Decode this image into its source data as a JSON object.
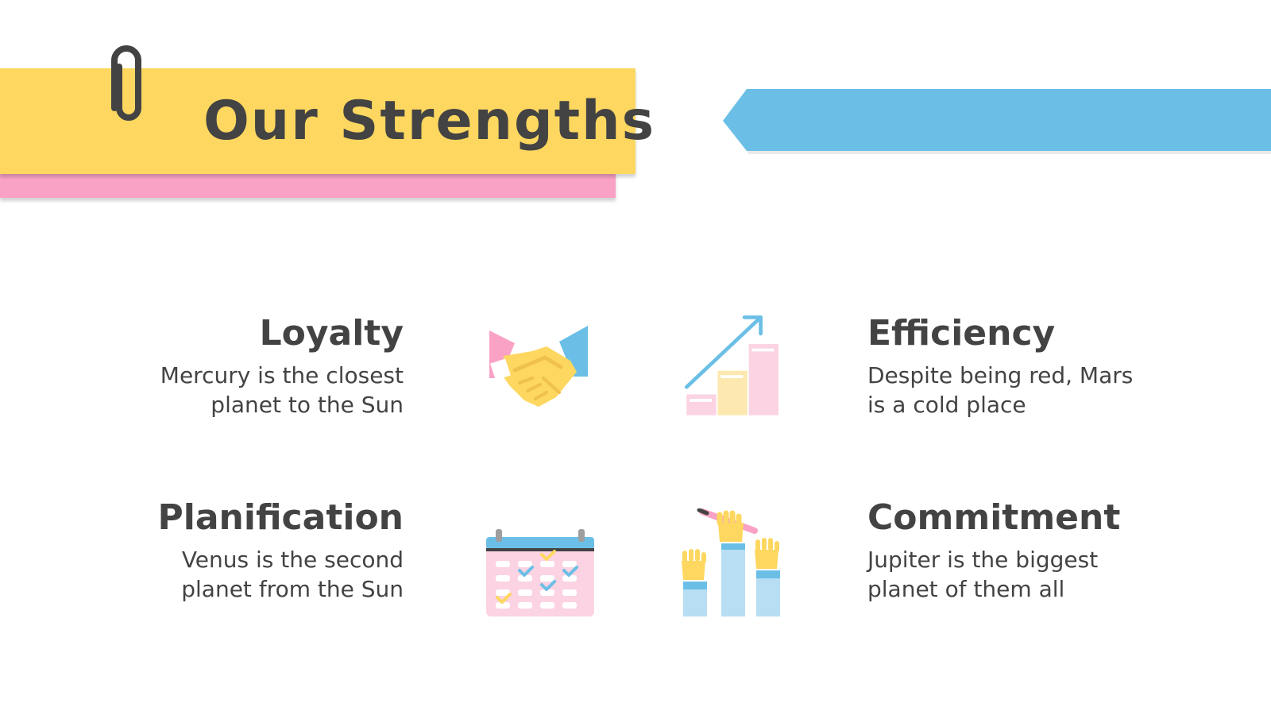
{
  "slide": {
    "title": "Our Strengths"
  },
  "items": [
    {
      "title": "Loyalty",
      "description_line1": "Mercury is the closest",
      "description_line2": "planet to the Sun",
      "icon": "handshake-icon"
    },
    {
      "title": "Efficiency",
      "description_line1": "Despite being red, Mars",
      "description_line2": "is a cold place",
      "icon": "growth-chart-icon"
    },
    {
      "title": "Planification",
      "description_line1": "Venus is the second",
      "description_line2": "planet from the Sun",
      "icon": "calendar-icon"
    },
    {
      "title": "Commitment",
      "description_line1": "Jupiter is the biggest",
      "description_line2": "planet of them all",
      "icon": "raised-hands-icon"
    }
  ],
  "colors": {
    "yellow": "#fdd75f",
    "pink": "#f9a2c6",
    "blue": "#6bbfe6",
    "text": "#434343"
  }
}
